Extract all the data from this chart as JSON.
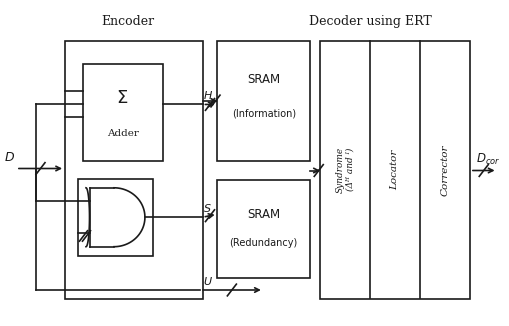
{
  "encoder_label": "Encoder",
  "decoder_label": "Decoder using ERT",
  "background_color": "#ffffff",
  "line_color": "#1a1a1a",
  "text_color": "#1a1a1a",
  "figsize": [
    5.1,
    3.26
  ],
  "dpi": 100,
  "xlim": [
    0,
    10.2
  ],
  "ylim": [
    0,
    6.52
  ]
}
